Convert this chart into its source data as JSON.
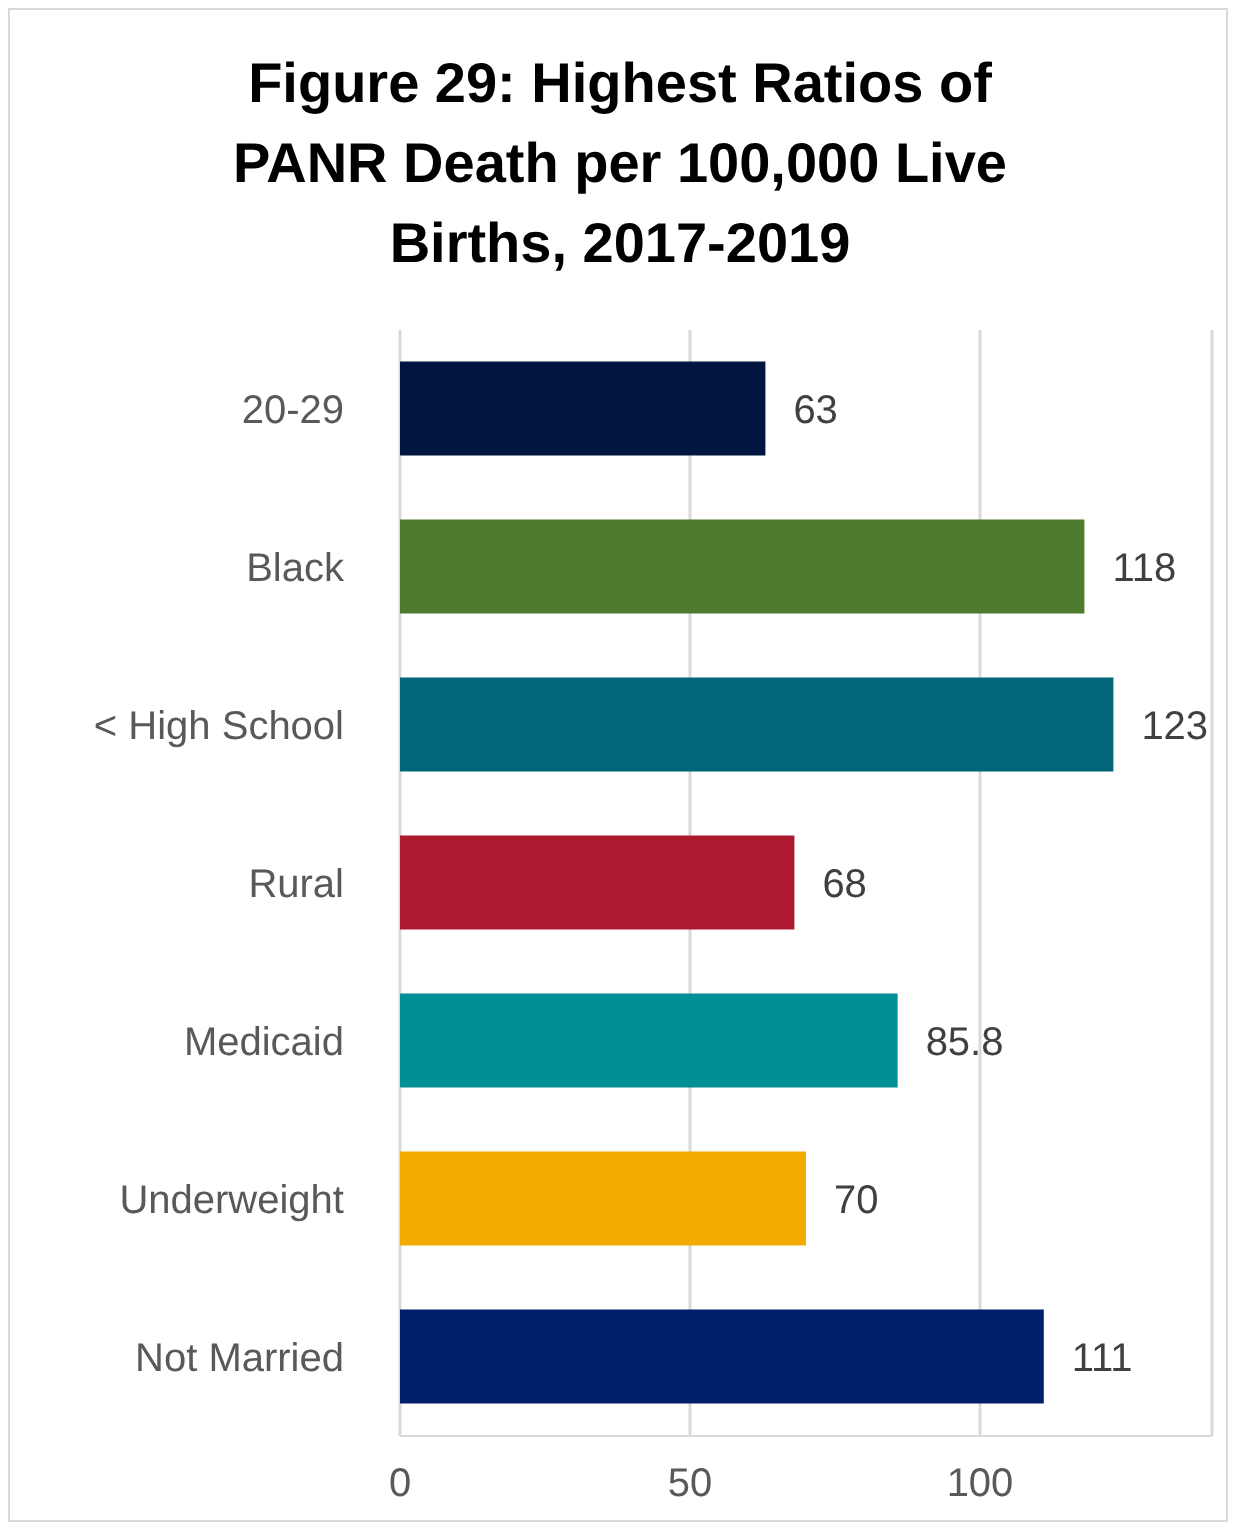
{
  "chart_data": {
    "type": "bar",
    "orientation": "horizontal",
    "title": "Figure 29: Highest Ratios of PANR Death per 100,000 Live Births, 2017-2019",
    "categories": [
      "20-29",
      "Black",
      "< High School",
      "Rural",
      "Medicaid",
      "Underweight",
      "Not Married"
    ],
    "values": [
      63,
      118,
      123,
      68,
      85.8,
      70,
      111
    ],
    "colors": [
      "#001540",
      "#4e7a2e",
      "#006678",
      "#ad1a30",
      "#008f95",
      "#f2ac00",
      "#001f6b"
    ],
    "xlim": [
      0,
      140
    ],
    "xticks": [
      0,
      50,
      100
    ],
    "grid": "x",
    "data_labels": true
  }
}
